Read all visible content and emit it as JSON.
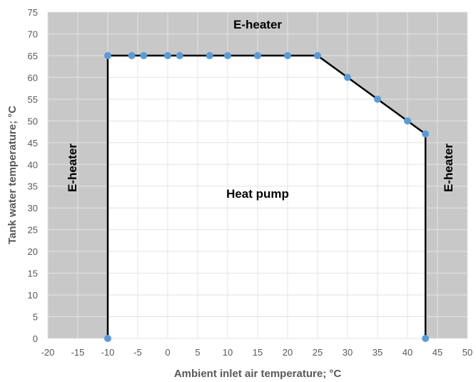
{
  "chart_data": {
    "type": "scatter",
    "xlabel": "Ambient inlet air temperature; °C",
    "ylabel": "Tank water temperature; °C",
    "xlim": [
      -20,
      50
    ],
    "ylim": [
      0,
      75
    ],
    "xticks": [
      "-20",
      "-15",
      "-10",
      "-5",
      "0",
      "5",
      "10",
      "15",
      "20",
      "25",
      "30",
      "35",
      "40",
      "45",
      "50"
    ],
    "yticks": [
      "0",
      "5",
      "10",
      "15",
      "20",
      "25",
      "30",
      "35",
      "40",
      "45",
      "50",
      "55",
      "60",
      "65",
      "70",
      "75"
    ],
    "grid": true,
    "series": [
      {
        "points": [
          {
            "x": -10,
            "y": 0
          },
          {
            "x": -10,
            "y": 65
          },
          {
            "x": -6,
            "y": 65
          },
          {
            "x": -4,
            "y": 65
          },
          {
            "x": 0,
            "y": 65
          },
          {
            "x": 2,
            "y": 65
          },
          {
            "x": 7,
            "y": 65
          },
          {
            "x": 10,
            "y": 65
          },
          {
            "x": 15,
            "y": 65
          },
          {
            "x": 20,
            "y": 65
          },
          {
            "x": 25,
            "y": 65
          },
          {
            "x": 30,
            "y": 60
          },
          {
            "x": 35,
            "y": 55
          },
          {
            "x": 40,
            "y": 50
          },
          {
            "x": 43,
            "y": 47
          },
          {
            "x": 43,
            "y": 0
          }
        ]
      }
    ],
    "regions": [
      {
        "label": "E-heater",
        "position": "top"
      },
      {
        "label": "E-heater",
        "position": "left"
      },
      {
        "label": "E-heater",
        "position": "right"
      },
      {
        "label": "Heat pump",
        "position": "center"
      }
    ],
    "colors": {
      "outside": "#c8c8c8",
      "inside": "#ffffff",
      "grid": "#e3e3e3",
      "boundary": "#000000",
      "marker": "#5b9bd5"
    }
  }
}
